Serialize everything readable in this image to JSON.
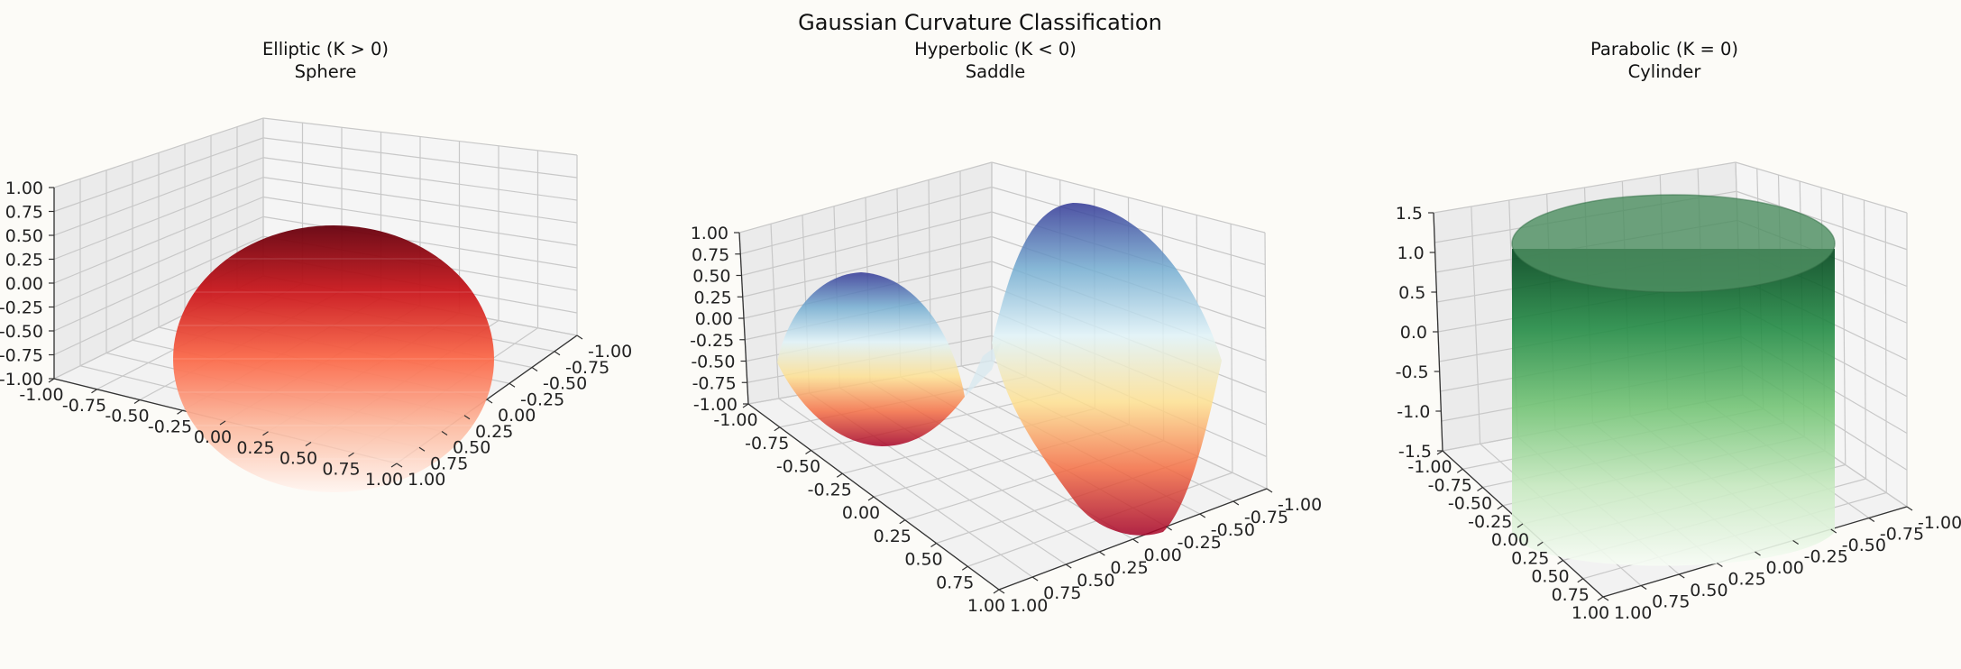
{
  "suptitle": "Gaussian Curvature Classification",
  "chart_data": [
    {
      "type": "surface",
      "title_line1": "Elliptic (K > 0)",
      "title_line2": "Sphere",
      "surface": "sphere",
      "colormap": "Reds",
      "colors": [
        "#fff5f0",
        "#fcbba1",
        "#fb6a4a",
        "#cb181d",
        "#67000d"
      ],
      "xlim": [
        -1,
        1
      ],
      "ylim": [
        -1,
        1
      ],
      "zlim": [
        -1,
        1
      ],
      "x_ticks": [
        "-1.00",
        "-0.75",
        "-0.50",
        "-0.25",
        "0.00",
        "0.25",
        "0.50",
        "0.75",
        "1.00"
      ],
      "y_ticks": [
        "-1.00",
        "-0.75",
        "-0.50",
        "-0.25",
        "0.00",
        "0.25",
        "0.50",
        "0.75",
        "1.00"
      ],
      "z_ticks": [
        "-1.00",
        "-0.75",
        "-0.50",
        "-0.25",
        "0.00",
        "0.25",
        "0.50",
        "0.75",
        "1.00"
      ],
      "z_tick_values": [
        -1,
        -0.75,
        -0.5,
        -0.25,
        0,
        0.25,
        0.5,
        0.75,
        1
      ],
      "grid": true
    },
    {
      "type": "surface",
      "title_line1": "Hyperbolic (K < 0)",
      "title_line2": "Saddle",
      "surface": "saddle",
      "colormap": "RdYlBu",
      "colors": [
        "#a50026",
        "#f46d43",
        "#fee090",
        "#e0f3f8",
        "#74add1",
        "#313695"
      ],
      "xlim": [
        -1,
        1
      ],
      "ylim": [
        -1,
        1
      ],
      "zlim": [
        -1,
        1
      ],
      "x_ticks": [
        "-1.00",
        "-0.75",
        "-0.50",
        "-0.25",
        "0.00",
        "0.25",
        "0.50",
        "0.75",
        "1.00"
      ],
      "y_ticks": [
        "-1.00",
        "-0.75",
        "-0.50",
        "-0.25",
        "0.00",
        "0.25",
        "0.50",
        "0.75",
        "1.00"
      ],
      "z_ticks": [
        "-1.00",
        "-0.75",
        "-0.50",
        "-0.25",
        "0.00",
        "0.25",
        "0.50",
        "0.75",
        "1.00"
      ],
      "z_tick_values": [
        -1,
        -0.75,
        -0.5,
        -0.25,
        0,
        0.25,
        0.5,
        0.75,
        1
      ],
      "grid": true
    },
    {
      "type": "surface",
      "title_line1": "Parabolic (K = 0)",
      "title_line2": "Cylinder",
      "surface": "cylinder",
      "colormap": "Greens",
      "colors": [
        "#f7fcf5",
        "#c7e9c0",
        "#74c476",
        "#238b45",
        "#00441b"
      ],
      "xlim": [
        -1,
        1
      ],
      "ylim": [
        -1,
        1
      ],
      "zlim": [
        -1.5,
        1.5
      ],
      "x_ticks": [
        "-1.00",
        "-0.75",
        "-0.50",
        "-0.25",
        "0.00",
        "0.25",
        "0.50",
        "0.75",
        "1.00"
      ],
      "y_ticks": [
        "-1.00",
        "-0.75",
        "-0.50",
        "-0.25",
        "0.00",
        "0.25",
        "0.50",
        "0.75",
        "1.00"
      ],
      "z_ticks": [
        "-1.5",
        "-1.0",
        "-0.5",
        "0.0",
        "0.5",
        "1.0",
        "1.5"
      ],
      "z_tick_values": [
        -1.5,
        -1,
        -0.5,
        0,
        0.5,
        1,
        1.5
      ],
      "grid": true
    }
  ]
}
